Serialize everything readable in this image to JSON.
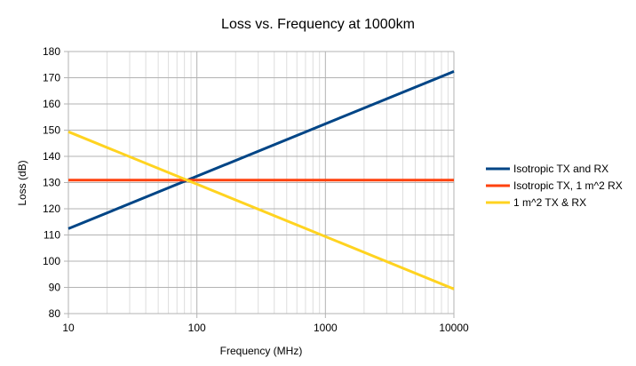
{
  "chart_data": {
    "type": "line",
    "title": "Loss vs. Frequency at 1000km",
    "xlabel": "Frequency (MHz)",
    "ylabel": "Loss (dB)",
    "xscale": "log",
    "xlim": [
      10,
      10000
    ],
    "ylim": [
      80,
      180
    ],
    "xticks": [
      10,
      100,
      1000,
      10000
    ],
    "xtick_labels": [
      "10",
      "100",
      "1000",
      "10000"
    ],
    "yticks": [
      80,
      90,
      100,
      110,
      120,
      130,
      140,
      150,
      160,
      170,
      180
    ],
    "ytick_labels": [
      "80",
      "90",
      "100",
      "110",
      "120",
      "130",
      "140",
      "150",
      "160",
      "170",
      "180"
    ],
    "grid": true,
    "legend_position": "right",
    "series": [
      {
        "name": "Isotropic TX and RX",
        "color": "#004586",
        "x": [
          10,
          10000
        ],
        "y": [
          112.4,
          172.4
        ]
      },
      {
        "name": "Isotropic TX, 1 m^2 RX",
        "color": "#ff420e",
        "x": [
          10,
          10000
        ],
        "y": [
          130.9,
          130.9
        ]
      },
      {
        "name": "1 m^2 TX & RX",
        "color": "#ffd320",
        "x": [
          10,
          10000
        ],
        "y": [
          149.4,
          89.4
        ]
      }
    ]
  }
}
